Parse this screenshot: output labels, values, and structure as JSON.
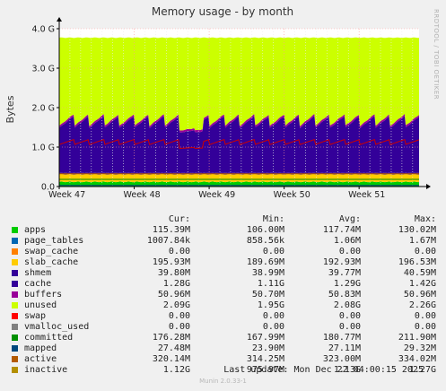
{
  "chart_data": {
    "type": "area",
    "title": "Memory usage - by month",
    "ylabel": "Bytes",
    "side_text": "RRDTOOL / TOBI OETIKER",
    "y_ticks": [
      {
        "value": 0,
        "label": "0.0"
      },
      {
        "value": 1000000000,
        "label": "1.0 G"
      },
      {
        "value": 2000000000,
        "label": "2.0 G"
      },
      {
        "value": 3000000000,
        "label": "3.0 G"
      },
      {
        "value": 4000000000,
        "label": "4.0 G"
      }
    ],
    "ylim": [
      0,
      4000000000
    ],
    "x_ticks": [
      "Week 47",
      "Week 48",
      "Week 49",
      "Week 50",
      "Week 51"
    ],
    "grid": true,
    "columns": [
      "Cur:",
      "Min:",
      "Avg:",
      "Max:"
    ],
    "series": [
      {
        "name": "apps",
        "color": "#00cc00",
        "stack": true,
        "values": {
          "cur": "115.39M",
          "min": "106.00M",
          "avg": "117.74M",
          "max": "130.02M"
        }
      },
      {
        "name": "page_tables",
        "color": "#0066b3",
        "stack": true,
        "values": {
          "cur": "1007.84k",
          "min": "858.56k",
          "avg": "1.06M",
          "max": "1.67M"
        }
      },
      {
        "name": "swap_cache",
        "color": "#ff8000",
        "stack": true,
        "values": {
          "cur": "0.00",
          "min": "0.00",
          "avg": "0.00",
          "max": "0.00"
        }
      },
      {
        "name": "slab_cache",
        "color": "#ffcc00",
        "stack": true,
        "values": {
          "cur": "195.93M",
          "min": "189.69M",
          "avg": "192.93M",
          "max": "196.53M"
        }
      },
      {
        "name": "shmem",
        "color": "#330099",
        "stack": true,
        "values": {
          "cur": "39.80M",
          "min": "38.99M",
          "avg": "39.77M",
          "max": "40.59M"
        }
      },
      {
        "name": "cache",
        "color": "#330099",
        "stack": true,
        "values": {
          "cur": "1.28G",
          "min": "1.11G",
          "avg": "1.29G",
          "max": "1.42G"
        }
      },
      {
        "name": "buffers",
        "color": "#990099",
        "stack": true,
        "values": {
          "cur": "50.96M",
          "min": "50.70M",
          "avg": "50.83M",
          "max": "50.96M"
        }
      },
      {
        "name": "unused",
        "color": "#ccff00",
        "stack": true,
        "values": {
          "cur": "2.09G",
          "min": "1.95G",
          "avg": "2.08G",
          "max": "2.26G"
        }
      },
      {
        "name": "swap",
        "color": "#ff0000",
        "stack": true,
        "values": {
          "cur": "0.00",
          "min": "0.00",
          "avg": "0.00",
          "max": "0.00"
        }
      },
      {
        "name": "vmalloc_used",
        "color": "#808080",
        "stack": false,
        "values": {
          "cur": "0.00",
          "min": "0.00",
          "avg": "0.00",
          "max": "0.00"
        }
      },
      {
        "name": "committed",
        "color": "#008f00",
        "stack": false,
        "values": {
          "cur": "176.28M",
          "min": "167.99M",
          "avg": "180.77M",
          "max": "211.90M"
        }
      },
      {
        "name": "mapped",
        "color": "#00487d",
        "stack": false,
        "values": {
          "cur": "27.48M",
          "min": "23.90M",
          "avg": "27.11M",
          "max": "29.32M"
        }
      },
      {
        "name": "active",
        "color": "#b35a00",
        "stack": false,
        "values": {
          "cur": "320.14M",
          "min": "314.25M",
          "avg": "323.00M",
          "max": "334.02M"
        }
      },
      {
        "name": "inactive",
        "color": "#b38f00",
        "stack": false,
        "values": {
          "cur": "1.12G",
          "min": "975.97M",
          "avg": "1.13G",
          "max": "1.27G"
        }
      }
    ]
  },
  "footer": {
    "last_update": "Last update:  Mon Dec 22 04:00:15 2025",
    "version": "Munin 2.0.33-1"
  }
}
